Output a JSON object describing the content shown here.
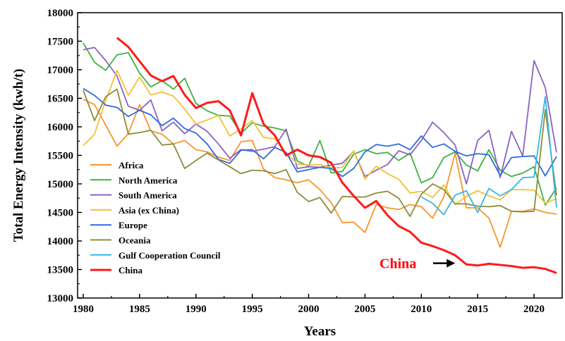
{
  "chart_data": {
    "type": "line",
    "xlabel": "Years",
    "ylabel": "Total Energy Intensity (kwh/t)",
    "xlim": [
      1979.5,
      2022.5
    ],
    "ylim": [
      13000,
      18000
    ],
    "x_ticks": [
      1980,
      1985,
      1990,
      1995,
      2000,
      2005,
      2010,
      2015,
      2020
    ],
    "y_ticks": [
      13000,
      13500,
      14000,
      14500,
      15000,
      15500,
      16000,
      16500,
      17000,
      17500,
      18000
    ],
    "grid": false,
    "legend_position": "bottom-left",
    "annotation": {
      "text": "China",
      "color": "#ff0000",
      "target_x": 2013,
      "target_y": 13560
    },
    "series": [
      {
        "name": "Africa",
        "color": "#f7962b",
        "x": [
          1980,
          1981,
          1982,
          1983,
          1984,
          1985,
          1986,
          1987,
          1988,
          1989,
          1990,
          1991,
          1992,
          1993,
          1994,
          1995,
          1996,
          1997,
          1998,
          1999,
          2000,
          2001,
          2002,
          2003,
          2004,
          2005,
          2006,
          2007,
          2008,
          2009,
          2010,
          2011,
          2012,
          2013,
          2014,
          2015,
          2016,
          2017,
          2018,
          2019,
          2020,
          2021,
          2022
        ],
        "y": [
          16480,
          16390,
          16030,
          15660,
          15880,
          16390,
          15930,
          15870,
          15700,
          15760,
          15600,
          15560,
          15470,
          15410,
          15740,
          15760,
          15260,
          15110,
          15070,
          15020,
          15070,
          14900,
          14670,
          14320,
          14330,
          14150,
          14640,
          14580,
          14550,
          14640,
          14600,
          14400,
          14770,
          15540,
          14580,
          14580,
          14400,
          13890,
          14520,
          14520,
          14560,
          14500,
          14470
        ]
      },
      {
        "name": "North America",
        "color": "#3cb43c",
        "x": [
          1980,
          1981,
          1982,
          1983,
          1984,
          1985,
          1986,
          1987,
          1988,
          1989,
          1990,
          1991,
          1992,
          1993,
          1994,
          1995,
          1996,
          1997,
          1998,
          1999,
          2000,
          2001,
          2002,
          2003,
          2004,
          2005,
          2006,
          2007,
          2008,
          2009,
          2010,
          2011,
          2012,
          2013,
          2014,
          2015,
          2016,
          2017,
          2018,
          2019,
          2020,
          2021,
          2022
        ],
        "y": [
          17470,
          17130,
          16990,
          17260,
          17300,
          16940,
          16700,
          16810,
          16660,
          16850,
          16410,
          16280,
          16200,
          16190,
          15890,
          16070,
          16010,
          15980,
          15930,
          15400,
          15310,
          15760,
          15190,
          15220,
          15520,
          15600,
          15530,
          15550,
          15410,
          15540,
          15020,
          15110,
          15460,
          15560,
          15330,
          15230,
          15600,
          15240,
          15130,
          15190,
          15300,
          14630,
          14930
        ]
      },
      {
        "name": "South America",
        "color": "#8c62c5",
        "x": [
          1980,
          1981,
          1982,
          1983,
          1984,
          1985,
          1986,
          1987,
          1988,
          1989,
          1990,
          1991,
          1992,
          1993,
          1994,
          1995,
          1996,
          1997,
          1998,
          1999,
          2000,
          2001,
          2002,
          2003,
          2004,
          2005,
          2006,
          2007,
          2008,
          2009,
          2010,
          2011,
          2012,
          2013,
          2014,
          2015,
          2016,
          2017,
          2018,
          2019,
          2020,
          2021,
          2022
        ],
        "y": [
          17350,
          17390,
          17160,
          16890,
          16360,
          16290,
          16470,
          15930,
          16080,
          15880,
          16050,
          15920,
          15700,
          15450,
          15600,
          15570,
          15610,
          15650,
          15960,
          15270,
          15300,
          15290,
          15330,
          15360,
          15570,
          15130,
          15240,
          15340,
          15580,
          15510,
          15760,
          16080,
          15900,
          15680,
          15000,
          15760,
          15940,
          15110,
          15920,
          15490,
          17160,
          16690,
          15550
        ]
      },
      {
        "name": "Asia (ex China)",
        "color": "#f2c233",
        "x": [
          1980,
          1981,
          1982,
          1983,
          1984,
          1985,
          1986,
          1987,
          1988,
          1989,
          1990,
          1991,
          1992,
          1993,
          1994,
          1995,
          1996,
          1997,
          1998,
          1999,
          2000,
          2001,
          2002,
          2003,
          2004,
          2005,
          2006,
          2007,
          2008,
          2009,
          2010,
          2011,
          2012,
          2013,
          2014,
          2015,
          2016,
          2017,
          2018,
          2019,
          2020,
          2021,
          2022
        ],
        "y": [
          15670,
          15870,
          16460,
          16990,
          16550,
          16870,
          16560,
          16610,
          16540,
          16310,
          16050,
          16120,
          16200,
          15840,
          15960,
          16110,
          15810,
          15790,
          15550,
          15350,
          15330,
          15340,
          15280,
          15290,
          15580,
          15080,
          15310,
          15180,
          15080,
          14840,
          14870,
          14760,
          14980,
          14640,
          14780,
          14880,
          14790,
          14720,
          14900,
          14900,
          14890,
          14660,
          14740
        ]
      },
      {
        "name": "Europe",
        "color": "#2f6be0",
        "x": [
          1980,
          1981,
          1982,
          1983,
          1984,
          1985,
          1986,
          1987,
          1988,
          1989,
          1990,
          1991,
          1992,
          1993,
          1994,
          1995,
          1996,
          1997,
          1998,
          1999,
          2000,
          2001,
          2002,
          2003,
          2004,
          2005,
          2006,
          2007,
          2008,
          2009,
          2010,
          2011,
          2012,
          2013,
          2014,
          2015,
          2016,
          2017,
          2018,
          2019,
          2020,
          2021,
          2022
        ],
        "y": [
          16670,
          16550,
          16380,
          16340,
          16180,
          16290,
          16210,
          16020,
          16150,
          15970,
          15890,
          15700,
          15430,
          15360,
          15590,
          15600,
          15440,
          15640,
          15550,
          15210,
          15250,
          15290,
          15270,
          15130,
          15270,
          15560,
          15690,
          15660,
          15700,
          15600,
          15840,
          15640,
          15700,
          15570,
          15490,
          15530,
          15510,
          15150,
          15460,
          15480,
          15490,
          15140,
          15480
        ]
      },
      {
        "name": "Oceania",
        "color": "#8c8c3c",
        "x": [
          1980,
          1981,
          1982,
          1983,
          1984,
          1985,
          1986,
          1987,
          1988,
          1989,
          1990,
          1991,
          1992,
          1993,
          1994,
          1995,
          1996,
          1997,
          1998,
          1999,
          2000,
          2001,
          2002,
          2003,
          2004,
          2005,
          2006,
          2007,
          2008,
          2009,
          2010,
          2011,
          2012,
          2013,
          2014,
          2015,
          2016,
          2017,
          2018,
          2019,
          2020,
          2021,
          2022
        ],
        "y": [
          16640,
          16110,
          16530,
          16660,
          15870,
          15900,
          15940,
          15680,
          15700,
          15270,
          15410,
          15540,
          15420,
          15300,
          15180,
          15240,
          15230,
          15180,
          15250,
          14850,
          14690,
          14760,
          14490,
          14780,
          14770,
          14770,
          14840,
          14870,
          14750,
          14430,
          14820,
          15000,
          14900,
          14650,
          14650,
          14610,
          14600,
          14620,
          14520,
          14510,
          14520,
          16300,
          14800
        ]
      },
      {
        "name": "Gulf Cooperation Council",
        "color": "#36b7e0",
        "x": [
          2010,
          2011,
          2012,
          2013,
          2014,
          2015,
          2016,
          2017,
          2018,
          2019,
          2020,
          2021,
          2022
        ],
        "y": [
          14770,
          14660,
          14460,
          14800,
          14880,
          14500,
          14920,
          14790,
          14900,
          15110,
          15120,
          16530,
          14590
        ]
      },
      {
        "name": "China",
        "color": "#ff1a1a",
        "x": [
          1983,
          1984,
          1985,
          1986,
          1987,
          1988,
          1989,
          1990,
          1991,
          1992,
          1993,
          1994,
          1995,
          1996,
          1997,
          1998,
          1999,
          2000,
          2001,
          2002,
          2003,
          2004,
          2005,
          2006,
          2007,
          2008,
          2009,
          2010,
          2011,
          2012,
          2013,
          2014,
          2015,
          2016,
          2017,
          2018,
          2019,
          2020,
          2021,
          2022
        ],
        "y": [
          17560,
          17400,
          17150,
          16900,
          16800,
          16890,
          16560,
          16330,
          16420,
          16450,
          16290,
          15850,
          16590,
          16050,
          15850,
          15500,
          15600,
          15500,
          15470,
          15370,
          15020,
          14790,
          14580,
          14700,
          14450,
          14260,
          14160,
          13970,
          13910,
          13840,
          13750,
          13590,
          13570,
          13600,
          13580,
          13560,
          13530,
          13540,
          13510,
          13440
        ]
      }
    ]
  }
}
